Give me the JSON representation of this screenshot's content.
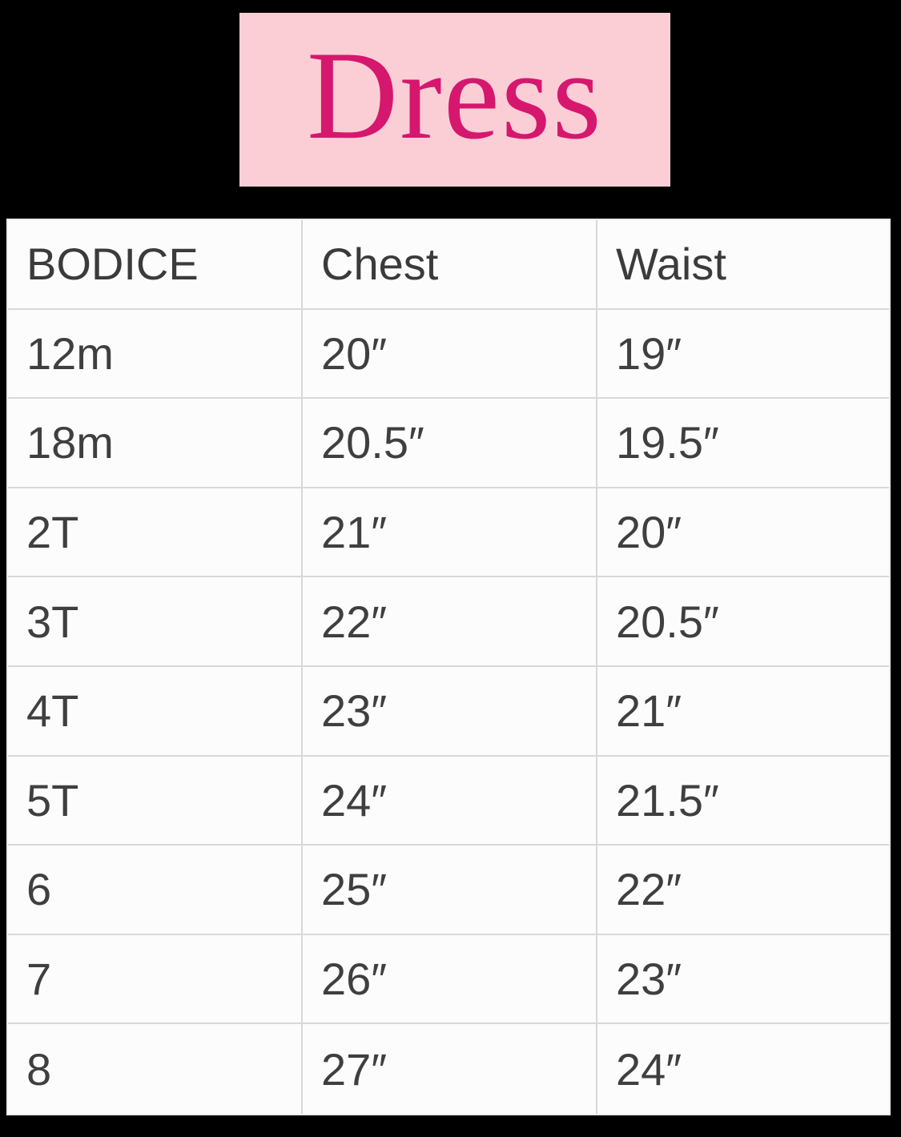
{
  "banner": {
    "title": "Dress"
  },
  "colors": {
    "page_background": "#000000",
    "banner_background": "#fbced6",
    "banner_text": "#d6176e",
    "table_background": "#fcfcfc",
    "table_border": "#d8d8d8",
    "table_text": "#3f3f3f"
  },
  "table": {
    "headers": [
      "BODICE",
      "Chest",
      "Waist"
    ],
    "rows": [
      [
        "12m",
        "20″",
        "19″"
      ],
      [
        "18m",
        "20.5″",
        "19.5″"
      ],
      [
        "2T",
        "21″",
        "20″"
      ],
      [
        "3T",
        "22″",
        "20.5″"
      ],
      [
        "4T",
        "23″",
        "21″"
      ],
      [
        "5T",
        "24″",
        "21.5″"
      ],
      [
        "6",
        "25″",
        "22″"
      ],
      [
        "7",
        "26″",
        "23″"
      ],
      [
        "8",
        "27″",
        "24″"
      ]
    ]
  },
  "chart_data": {
    "type": "table",
    "title": "Dress",
    "columns": [
      "BODICE",
      "Chest",
      "Waist"
    ],
    "rows": [
      {
        "bodice": "12m",
        "chest_in": 20,
        "waist_in": 19
      },
      {
        "bodice": "18m",
        "chest_in": 20.5,
        "waist_in": 19.5
      },
      {
        "bodice": "2T",
        "chest_in": 21,
        "waist_in": 20
      },
      {
        "bodice": "3T",
        "chest_in": 22,
        "waist_in": 20.5
      },
      {
        "bodice": "4T",
        "chest_in": 23,
        "waist_in": 21
      },
      {
        "bodice": "5T",
        "chest_in": 24,
        "waist_in": 21.5
      },
      {
        "bodice": "6",
        "chest_in": 25,
        "waist_in": 22
      },
      {
        "bodice": "7",
        "chest_in": 26,
        "waist_in": 23
      },
      {
        "bodice": "8",
        "chest_in": 27,
        "waist_in": 24
      }
    ]
  }
}
